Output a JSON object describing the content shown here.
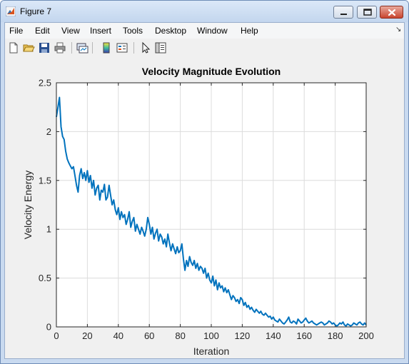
{
  "window": {
    "title": "Figure 7"
  },
  "menu": [
    "File",
    "Edit",
    "View",
    "Insert",
    "Tools",
    "Desktop",
    "Window",
    "Help"
  ],
  "menu_overflow": "↘",
  "toolbar": {
    "icons": [
      "new-figure-icon",
      "open-file-icon",
      "save-icon",
      "print-icon",
      "link-plot-icon",
      "insert-colorbar-icon",
      "insert-legend-icon",
      "edit-plot-arrow-icon",
      "property-editor-icon"
    ]
  },
  "colors": {
    "line": "#0072bd",
    "axes_bg": "#ffffff",
    "figure_bg": "#f0f0f0",
    "grid": "#dcdcdc"
  },
  "chart_data": {
    "type": "line",
    "title": "Velocity Magnitude Evolution",
    "xlabel": "Iteration",
    "ylabel": "Velocity Energy",
    "xlim": [
      0,
      200
    ],
    "ylim": [
      0,
      2.5
    ],
    "xticks": [
      0,
      20,
      40,
      60,
      80,
      100,
      120,
      140,
      160,
      180,
      200
    ],
    "yticks": [
      0,
      0.5,
      1,
      1.5,
      2,
      2.5
    ],
    "ytick_labels": [
      "0",
      "0.5",
      "1",
      "1.5",
      "2",
      "2.5"
    ],
    "grid": true,
    "series": [
      {
        "x": [
          0,
          1,
          2,
          3,
          4,
          5,
          6,
          7,
          8,
          9,
          10,
          11,
          12,
          13,
          14,
          15,
          16,
          17,
          18,
          19,
          20,
          21,
          22,
          23,
          24,
          25,
          26,
          27,
          28,
          29,
          30,
          31,
          32,
          33,
          34,
          35,
          36,
          37,
          38,
          39,
          40,
          41,
          42,
          43,
          44,
          45,
          46,
          47,
          48,
          49,
          50,
          51,
          52,
          53,
          54,
          55,
          56,
          57,
          58,
          59,
          60,
          61,
          62,
          63,
          64,
          65,
          66,
          67,
          68,
          69,
          70,
          71,
          72,
          73,
          74,
          75,
          76,
          77,
          78,
          79,
          80,
          81,
          82,
          83,
          84,
          85,
          86,
          87,
          88,
          89,
          90,
          91,
          92,
          93,
          94,
          95,
          96,
          97,
          98,
          99,
          100,
          101,
          102,
          103,
          104,
          105,
          106,
          107,
          108,
          109,
          110,
          111,
          112,
          113,
          114,
          115,
          116,
          117,
          118,
          119,
          120,
          121,
          122,
          123,
          124,
          125,
          126,
          127,
          128,
          129,
          130,
          131,
          132,
          133,
          134,
          135,
          136,
          137,
          138,
          139,
          140,
          141,
          142,
          143,
          144,
          145,
          146,
          147,
          148,
          149,
          150,
          151,
          152,
          153,
          154,
          155,
          156,
          157,
          158,
          159,
          160,
          161,
          162,
          163,
          164,
          165,
          166,
          167,
          168,
          169,
          170,
          171,
          172,
          173,
          174,
          175,
          176,
          177,
          178,
          179,
          180,
          181,
          182,
          183,
          184,
          185,
          186,
          187,
          188,
          189,
          190,
          191,
          192,
          193,
          194,
          195,
          196,
          197,
          198,
          199,
          200
        ],
        "y": [
          2.15,
          2.25,
          2.35,
          2.05,
          1.95,
          1.92,
          1.8,
          1.72,
          1.68,
          1.65,
          1.62,
          1.64,
          1.55,
          1.45,
          1.38,
          1.55,
          1.62,
          1.52,
          1.58,
          1.5,
          1.6,
          1.48,
          1.55,
          1.42,
          1.5,
          1.35,
          1.42,
          1.45,
          1.3,
          1.4,
          1.38,
          1.46,
          1.3,
          1.33,
          1.45,
          1.35,
          1.25,
          1.3,
          1.2,
          1.15,
          1.22,
          1.1,
          1.18,
          1.12,
          1.15,
          1.05,
          1.1,
          1.18,
          1.02,
          1.08,
          1.12,
          0.98,
          1.05,
          1.0,
          0.95,
          1.02,
          0.98,
          0.93,
          1.0,
          1.12,
          1.05,
          0.95,
          1.02,
          0.9,
          0.96,
          1.0,
          0.88,
          0.95,
          0.92,
          0.85,
          0.9,
          0.82,
          0.95,
          0.86,
          0.78,
          0.85,
          0.8,
          0.75,
          0.82,
          0.76,
          0.78,
          0.85,
          0.7,
          0.58,
          0.68,
          0.62,
          0.72,
          0.66,
          0.63,
          0.68,
          0.6,
          0.65,
          0.58,
          0.62,
          0.6,
          0.55,
          0.6,
          0.5,
          0.55,
          0.48,
          0.45,
          0.52,
          0.42,
          0.48,
          0.38,
          0.45,
          0.4,
          0.42,
          0.36,
          0.4,
          0.35,
          0.38,
          0.33,
          0.28,
          0.32,
          0.3,
          0.26,
          0.28,
          0.24,
          0.3,
          0.28,
          0.22,
          0.25,
          0.2,
          0.22,
          0.18,
          0.2,
          0.17,
          0.15,
          0.18,
          0.16,
          0.14,
          0.16,
          0.13,
          0.12,
          0.14,
          0.12,
          0.1,
          0.11,
          0.08,
          0.1,
          0.07,
          0.06,
          0.05,
          0.08,
          0.06,
          0.04,
          0.03,
          0.05,
          0.07,
          0.1,
          0.05,
          0.04,
          0.06,
          0.05,
          0.03,
          0.08,
          0.06,
          0.04,
          0.05,
          0.07,
          0.09,
          0.06,
          0.04,
          0.05,
          0.06,
          0.04,
          0.03,
          0.02,
          0.03,
          0.04,
          0.05,
          0.04,
          0.02,
          0.03,
          0.04,
          0.06,
          0.05,
          0.03,
          0.04,
          0.02,
          0.01,
          0.02,
          0.04,
          0.03,
          0.05,
          0.02,
          0.01,
          0.03,
          0.02,
          0.01,
          0.02,
          0.04,
          0.03,
          0.02,
          0.04,
          0.05,
          0.03,
          0.02,
          0.04,
          0.02
        ]
      }
    ]
  }
}
